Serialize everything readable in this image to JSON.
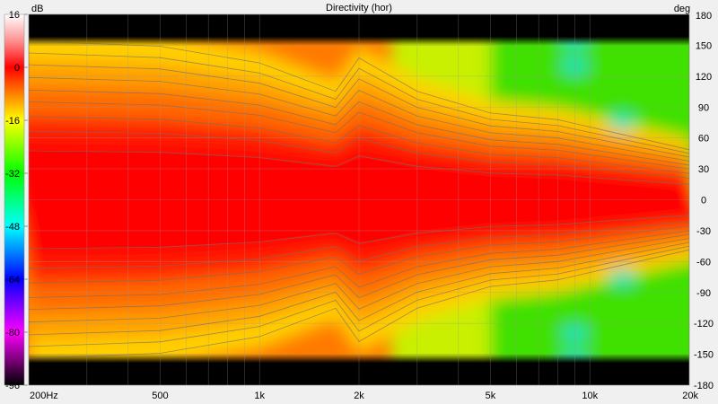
{
  "chart_data": {
    "type": "heatmap",
    "title": "Directivity (hor)",
    "colorbar_unit": "dB",
    "y_unit": "deg",
    "x_scale": "log",
    "x_range": [
      200,
      20000
    ],
    "y_range": [
      -180,
      180
    ],
    "color_range": [
      -96,
      16
    ],
    "x_ticks": [
      {
        "value": 200,
        "label": "200Hz"
      },
      {
        "value": 500,
        "label": "500"
      },
      {
        "value": 1000,
        "label": "1k"
      },
      {
        "value": 2000,
        "label": "2k"
      },
      {
        "value": 5000,
        "label": "5k"
      },
      {
        "value": 10000,
        "label": "10k"
      },
      {
        "value": 20000,
        "label": "20k"
      }
    ],
    "y_ticks": [
      180,
      150,
      120,
      90,
      60,
      30,
      0,
      -30,
      -60,
      -90,
      -120,
      -150,
      -180
    ],
    "colorbar_ticks": [
      16,
      0,
      -16,
      -32,
      -48,
      -64,
      -80,
      -96
    ],
    "colorbar_colors": [
      {
        "value": 16,
        "color": "#ffffff"
      },
      {
        "value": 8,
        "color": "#ff9090"
      },
      {
        "value": 0,
        "color": "#ff0000"
      },
      {
        "value": -8,
        "color": "#ff8000"
      },
      {
        "value": -16,
        "color": "#ffff00"
      },
      {
        "value": -24,
        "color": "#80ff00"
      },
      {
        "value": -32,
        "color": "#00ff00"
      },
      {
        "value": -40,
        "color": "#00ff80"
      },
      {
        "value": -48,
        "color": "#00ffff"
      },
      {
        "value": -56,
        "color": "#0080ff"
      },
      {
        "value": -64,
        "color": "#0000ff"
      },
      {
        "value": -72,
        "color": "#8000ff"
      },
      {
        "value": -80,
        "color": "#ff00ff"
      },
      {
        "value": -88,
        "color": "#800080"
      },
      {
        "value": -96,
        "color": "#000000"
      }
    ],
    "beamwidth_6db_deg": [
      {
        "freq": 200,
        "half_angle": 95
      },
      {
        "freq": 500,
        "half_angle": 92
      },
      {
        "freq": 1000,
        "half_angle": 82
      },
      {
        "freq": 1700,
        "half_angle": 65
      },
      {
        "freq": 2000,
        "half_angle": 85
      },
      {
        "freq": 3000,
        "half_angle": 65
      },
      {
        "freq": 5000,
        "half_angle": 52
      },
      {
        "freq": 8000,
        "half_angle": 48
      },
      {
        "freq": 12000,
        "half_angle": 40
      },
      {
        "freq": 20000,
        "half_angle": 30
      }
    ],
    "grid": true
  }
}
